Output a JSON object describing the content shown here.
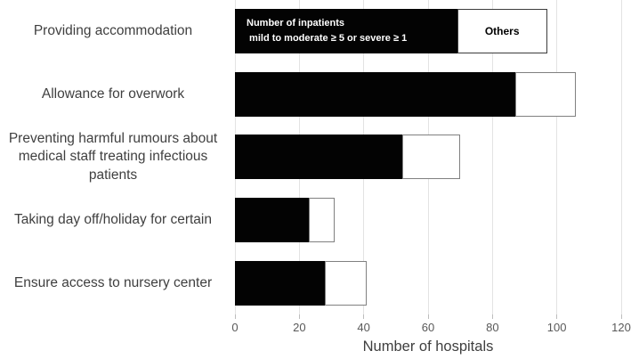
{
  "chart_data": {
    "type": "bar",
    "orientation": "horizontal",
    "title": "",
    "xlabel": "Number of hospitals",
    "ylabel": "",
    "xlim": [
      0,
      120
    ],
    "xticks": [
      0,
      20,
      40,
      60,
      80,
      100,
      120
    ],
    "grid": true,
    "legend_position": "inside-first-bar",
    "categories": [
      "Providing accommodation",
      "Allowance for overwork",
      "Preventing harmful rumours about medical staff treating infectious patients",
      "Taking day off/holiday for certain",
      "Ensure access to nursery center"
    ],
    "series": [
      {
        "name": "Number of inpatients mild to moderate ≥ 5 or severe ≥ 1",
        "color": "#000000",
        "values": [
          69,
          87,
          52,
          23,
          28
        ]
      },
      {
        "name": "Others",
        "color": "#ffffff",
        "values": [
          28,
          19,
          18,
          8,
          13
        ]
      }
    ],
    "totals": [
      97,
      106,
      70,
      31,
      41
    ]
  },
  "legend": {
    "series1_line1": "Number of inpatients",
    "series1_line2": " mild to moderate ≥ 5 or severe ≥ 1",
    "series2_label": "Others"
  },
  "colors": {
    "bar_fill": "#000000",
    "others_fill": "#ffffff",
    "others_border": "#808080",
    "gridline": "#e3e3e3",
    "label_text": "#3f3f3f",
    "tick_text": "#595959"
  }
}
